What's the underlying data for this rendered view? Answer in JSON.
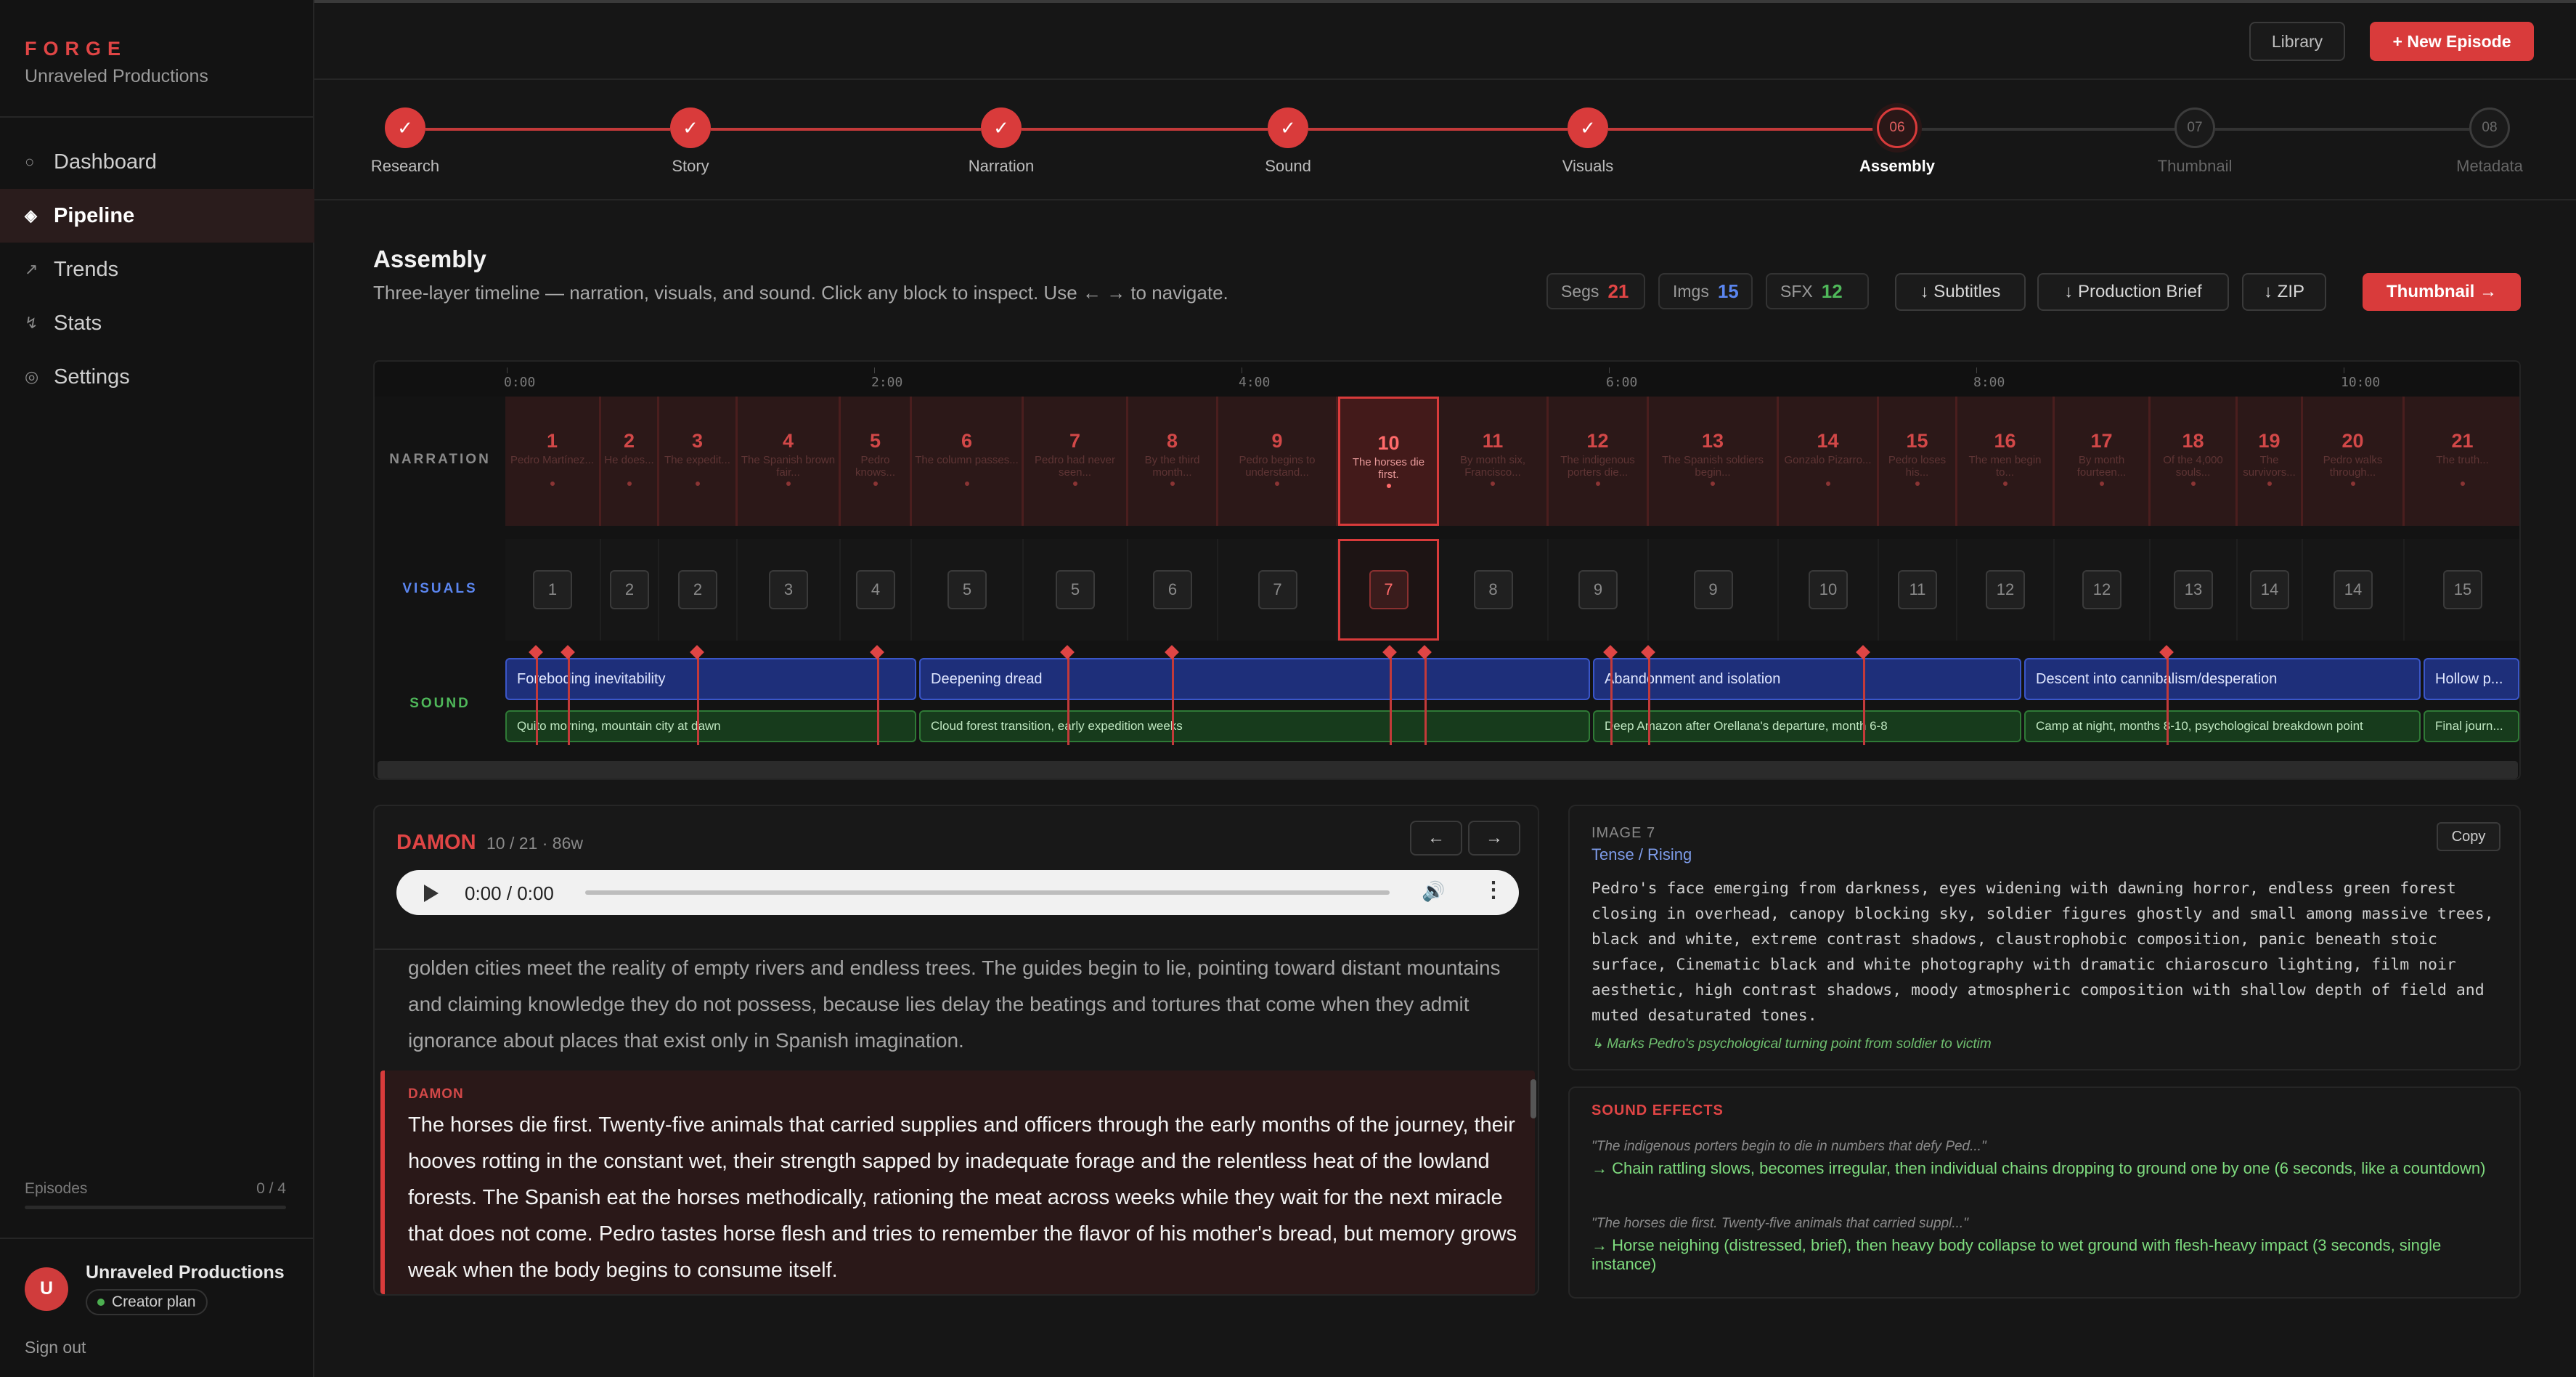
{
  "sidebar": {
    "logo": "FORGE",
    "org": "Unraveled Productions",
    "nav": [
      {
        "icon": "○",
        "label": "Dashboard"
      },
      {
        "icon": "◈",
        "label": "Pipeline"
      },
      {
        "icon": "↗",
        "label": "Trends"
      },
      {
        "icon": "↯",
        "label": "Stats"
      },
      {
        "icon": "◎",
        "label": "Settings"
      }
    ],
    "active_nav": "Pipeline",
    "episodes_label": "Episodes",
    "episodes_count": "0 / 4",
    "episodes_progress": 0,
    "user_initial": "U",
    "user_name": "Unraveled Productions",
    "plan": "Creator plan",
    "sign_out": "Sign out"
  },
  "header": {
    "library": "Library",
    "new_episode": "+ New Episode"
  },
  "steps": [
    {
      "label": "Research",
      "state": "done",
      "mark": "✓"
    },
    {
      "label": "Story",
      "state": "done",
      "mark": "✓"
    },
    {
      "label": "Narration",
      "state": "done",
      "mark": "✓"
    },
    {
      "label": "Sound",
      "state": "done",
      "mark": "✓"
    },
    {
      "label": "Visuals",
      "state": "done",
      "mark": "✓"
    },
    {
      "label": "Assembly",
      "state": "current",
      "mark": "06"
    },
    {
      "label": "Thumbnail",
      "state": "todo",
      "mark": "07"
    },
    {
      "label": "Metadata",
      "state": "todo",
      "mark": "08"
    }
  ],
  "assembly": {
    "title": "Assembly",
    "subtitle": "Three-layer timeline — narration, visuals, and sound. Click any block to inspect. Use ← → to navigate.",
    "stats": [
      {
        "label": "Segs",
        "value": "21",
        "color": "#e04545"
      },
      {
        "label": "Imgs",
        "value": "15",
        "color": "#5b86f0"
      },
      {
        "label": "SFX",
        "value": "12",
        "color": "#4fb85a"
      }
    ],
    "actions": {
      "subtitles": "↓ Subtitles",
      "brief": "↓ Production Brief",
      "zip": "↓ ZIP",
      "thumbnail": "Thumbnail →"
    }
  },
  "timeline": {
    "row_labels": {
      "narration": "NARRATION",
      "visuals": "VISUALS",
      "sound": "SOUND"
    },
    "ticks": [
      "0:00",
      "2:00",
      "4:00",
      "6:00",
      "8:00",
      "10:00"
    ],
    "selected": 10,
    "segments": [
      {
        "n": "1",
        "t": "Pedro Martínez...",
        "img": "1"
      },
      {
        "n": "2",
        "t": "He does...",
        "img": "2"
      },
      {
        "n": "3",
        "t": "The expedit...",
        "img": "2"
      },
      {
        "n": "4",
        "t": "The Spanish brown fair...",
        "img": "3"
      },
      {
        "n": "5",
        "t": "Pedro knows...",
        "img": "4"
      },
      {
        "n": "6",
        "t": "The column passes...",
        "img": "5"
      },
      {
        "n": "7",
        "t": "Pedro had never seen...",
        "img": "5"
      },
      {
        "n": "8",
        "t": "By the third month...",
        "img": "6"
      },
      {
        "n": "9",
        "t": "Pedro begins to understand...",
        "img": "7"
      },
      {
        "n": "10",
        "t": "The horses die first.",
        "img": "7"
      },
      {
        "n": "11",
        "t": "By month six, Francisco...",
        "img": "8"
      },
      {
        "n": "12",
        "t": "The indigenous porters die...",
        "img": "9"
      },
      {
        "n": "13",
        "t": "The Spanish soldiers begin...",
        "img": "9"
      },
      {
        "n": "14",
        "t": "Gonzalo Pizarro...",
        "img": "10"
      },
      {
        "n": "15",
        "t": "Pedro loses his...",
        "img": "11"
      },
      {
        "n": "16",
        "t": "The men begin to...",
        "img": "12"
      },
      {
        "n": "17",
        "t": "By month fourteen...",
        "img": "12"
      },
      {
        "n": "18",
        "t": "Of the 4,000 souls...",
        "img": "13"
      },
      {
        "n": "19",
        "t": "The survivors...",
        "img": "14"
      },
      {
        "n": "20",
        "t": "Pedro walks through...",
        "img": "14"
      },
      {
        "n": "21",
        "t": "The truth...",
        "img": "15"
      }
    ],
    "music": [
      "Foreboding inevitability",
      "Deepening dread",
      "Abandonment and isolation",
      "Descent into cannibalism/desperation",
      "Hollow p..."
    ],
    "ambience": [
      "Quito morning, mountain city at dawn",
      "Cloud forest transition, early expedition weeks",
      "Deep Amazon after Orellana's departure, month 6-8",
      "Camp at night, months 8-10, psychological breakdown point",
      "Final journ..."
    ]
  },
  "detail": {
    "speaker": "DAMON",
    "meta": "10 / 21 · 86w",
    "prev_icon": "←",
    "next_icon": "→",
    "audio_time": "0:00 / 0:00",
    "prev_text": "golden cities meet the reality of empty rivers and endless trees. The guides begin to lie, pointing toward distant mountains and claiming knowledge they do not possess, because lies delay the beatings and tortures that come when they admit ignorance about places that exist only in Spanish imagination.",
    "current_speaker": "DAMON",
    "current_text": "The horses die first. Twenty-five animals that carried supplies and officers through the early months of the journey, their hooves rotting in the constant wet, their strength sapped by inadequate forage and the relentless heat of the lowland forests. The Spanish eat the horses methodically, rationing the meat across weeks while they wait for the next miracle that does not come. Pedro tastes horse flesh and tries to remember the flavor of his mother's bread, but memory grows weak when the body begins to consume itself."
  },
  "image_panel": {
    "label": "IMAGE 7",
    "mood": "Tense / Rising",
    "copy": "Copy",
    "prompt": "Pedro's face emerging from darkness, eyes widening with dawning horror, endless green forest closing in overhead, canopy blocking sky, soldier figures ghostly and small among massive trees, black and white, extreme contrast shadows, claustrophobic composition, panic beneath stoic surface, Cinematic black and white photography with dramatic chiaroscuro lighting, film noir aesthetic, high contrast shadows, moody atmospheric composition with shallow depth of field and muted desaturated tones.",
    "note": "↳ Marks Pedro's psychological turning point from soldier to victim"
  },
  "sfx_panel": {
    "title": "SOUND EFFECTS",
    "items": [
      {
        "quote": "\"The indigenous porters begin to die in numbers that defy Ped...\"",
        "desc": "→ Chain rattling slows, becomes irregular, then individual chains dropping to ground one by one (6 seconds, like a countdown)"
      },
      {
        "quote": "\"The horses die first. Twenty-five animals that carried suppl...\"",
        "desc": "→ Horse neighing (distressed, brief), then heavy body collapse to wet ground with flesh-heavy impact (3 seconds, single instance)"
      }
    ]
  }
}
